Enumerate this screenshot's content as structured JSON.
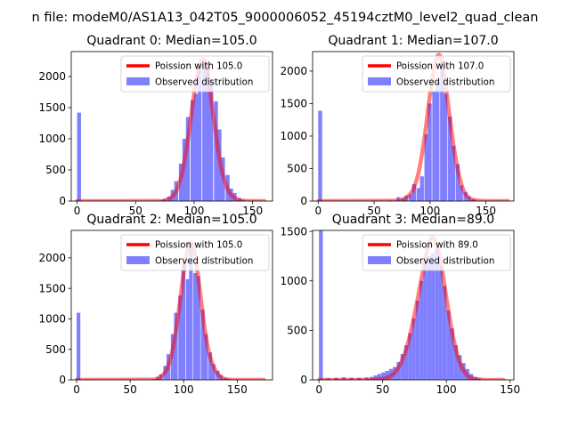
{
  "suptitle": "n file: modeM0/AS1A13_042T05_9000006052_45194cztM0_level2_quad_clean",
  "legend_labels": [
    "Poission with {v}",
    "Observed distribution"
  ],
  "colors": {
    "hist": "#8080ff",
    "fit": "#ff0000",
    "fit_alpha": 0.5
  },
  "chart_data": [
    {
      "type": "bar",
      "title": "Quadrant 0: Median=105.0",
      "median": 105.0,
      "legend_position": "upper-right",
      "xlim": [
        -5,
        167
      ],
      "ylim": [
        0,
        2400
      ],
      "xticks": [
        0,
        50,
        100,
        150
      ],
      "yticks": [
        0,
        500,
        1000,
        1500,
        2000
      ],
      "bin_width": 3.33,
      "bins": [
        [
          0,
          1420
        ],
        [
          70,
          10
        ],
        [
          73,
          30
        ],
        [
          77,
          70
        ],
        [
          80,
          180
        ],
        [
          83,
          320
        ],
        [
          87,
          600
        ],
        [
          90,
          1000
        ],
        [
          93,
          1350
        ],
        [
          97,
          1620
        ],
        [
          100,
          1720
        ],
        [
          103,
          2100
        ],
        [
          107,
          2230
        ],
        [
          110,
          2250
        ],
        [
          113,
          1950
        ],
        [
          117,
          1600
        ],
        [
          120,
          1150
        ],
        [
          123,
          700
        ],
        [
          127,
          420
        ],
        [
          130,
          200
        ],
        [
          133,
          130
        ],
        [
          137,
          50
        ],
        [
          140,
          20
        ]
      ],
      "fit": [
        [
          0,
          0
        ],
        [
          70,
          2
        ],
        [
          75,
          12
        ],
        [
          80,
          55
        ],
        [
          85,
          170
        ],
        [
          90,
          470
        ],
        [
          95,
          1030
        ],
        [
          100,
          1720
        ],
        [
          103,
          2040
        ],
        [
          105,
          2200
        ],
        [
          107,
          2270
        ],
        [
          109,
          2240
        ],
        [
          111,
          2110
        ],
        [
          113,
          1880
        ],
        [
          115,
          1560
        ],
        [
          118,
          1170
        ],
        [
          121,
          750
        ],
        [
          125,
          390
        ],
        [
          130,
          140
        ],
        [
          135,
          45
        ],
        [
          140,
          10
        ],
        [
          150,
          0
        ],
        [
          160,
          0
        ]
      ]
    },
    {
      "type": "bar",
      "title": "Quadrant 1: Median=107.0",
      "median": 107.0,
      "legend_position": "upper-right",
      "xlim": [
        -5,
        175
      ],
      "ylim": [
        0,
        2300
      ],
      "xticks": [
        0,
        50,
        100,
        150
      ],
      "yticks": [
        0,
        500,
        1000,
        1500,
        2000
      ],
      "bin_width": 3.5,
      "bins": [
        [
          0,
          1390
        ],
        [
          63,
          10
        ],
        [
          70,
          60
        ],
        [
          74,
          40
        ],
        [
          77,
          80
        ],
        [
          81,
          100
        ],
        [
          84,
          260
        ],
        [
          88,
          200
        ],
        [
          91,
          380
        ],
        [
          95,
          1030
        ],
        [
          98,
          1500
        ],
        [
          102,
          1700
        ],
        [
          105,
          1850
        ],
        [
          109,
          2150
        ],
        [
          112,
          1650
        ],
        [
          116,
          1300
        ],
        [
          119,
          850
        ],
        [
          123,
          570
        ],
        [
          126,
          240
        ],
        [
          130,
          140
        ],
        [
          133,
          70
        ],
        [
          137,
          30
        ]
      ],
      "fit": [
        [
          0,
          0
        ],
        [
          70,
          5
        ],
        [
          75,
          20
        ],
        [
          80,
          70
        ],
        [
          85,
          180
        ],
        [
          90,
          460
        ],
        [
          95,
          970
        ],
        [
          100,
          1640
        ],
        [
          103,
          1980
        ],
        [
          106,
          2200
        ],
        [
          108,
          2250
        ],
        [
          110,
          2190
        ],
        [
          112,
          1990
        ],
        [
          115,
          1640
        ],
        [
          118,
          1240
        ],
        [
          121,
          860
        ],
        [
          125,
          470
        ],
        [
          130,
          160
        ],
        [
          135,
          50
        ],
        [
          140,
          12
        ],
        [
          150,
          0
        ],
        [
          170,
          0
        ]
      ]
    },
    {
      "type": "bar",
      "title": "Quadrant 2: Median=105.0",
      "median": 105.0,
      "legend_position": "upper-right",
      "xlim": [
        -5,
        183
      ],
      "ylim": [
        0,
        2450
      ],
      "xticks": [
        0,
        50,
        100,
        150
      ],
      "yticks": [
        0,
        500,
        1000,
        1500,
        2000
      ],
      "bin_width": 3.5,
      "bins": [
        [
          0,
          1100
        ],
        [
          70,
          10
        ],
        [
          74,
          40
        ],
        [
          77,
          90
        ],
        [
          81,
          230
        ],
        [
          84,
          420
        ],
        [
          88,
          750
        ],
        [
          91,
          1100
        ],
        [
          95,
          1380
        ],
        [
          98,
          1900
        ],
        [
          102,
          1650
        ],
        [
          105,
          2250
        ],
        [
          109,
          1750
        ],
        [
          112,
          1700
        ],
        [
          116,
          1150
        ],
        [
          119,
          750
        ],
        [
          123,
          450
        ],
        [
          126,
          260
        ],
        [
          130,
          150
        ],
        [
          133,
          80
        ],
        [
          137,
          30
        ],
        [
          140,
          15
        ]
      ],
      "fit": [
        [
          0,
          0
        ],
        [
          70,
          5
        ],
        [
          75,
          20
        ],
        [
          80,
          70
        ],
        [
          85,
          200
        ],
        [
          90,
          520
        ],
        [
          95,
          1080
        ],
        [
          100,
          1760
        ],
        [
          103,
          2080
        ],
        [
          105,
          2230
        ],
        [
          107,
          2250
        ],
        [
          109,
          2180
        ],
        [
          111,
          1990
        ],
        [
          114,
          1620
        ],
        [
          117,
          1200
        ],
        [
          120,
          800
        ],
        [
          124,
          420
        ],
        [
          130,
          140
        ],
        [
          135,
          45
        ],
        [
          140,
          10
        ],
        [
          150,
          0
        ],
        [
          175,
          0
        ]
      ]
    },
    {
      "type": "bar",
      "title": "Quadrant 3: Median=89.0",
      "median": 89.0,
      "legend_position": "upper-right",
      "xlim": [
        -5,
        153
      ],
      "ylim": [
        0,
        1510
      ],
      "xticks": [
        0,
        50,
        100,
        150
      ],
      "yticks": [
        0,
        500,
        1000,
        1500
      ],
      "bin_width": 3.0,
      "bins": [
        [
          0,
          1510
        ],
        [
          6,
          15
        ],
        [
          12,
          20
        ],
        [
          18,
          25
        ],
        [
          24,
          20
        ],
        [
          30,
          20
        ],
        [
          36,
          25
        ],
        [
          40,
          30
        ],
        [
          43,
          45
        ],
        [
          46,
          60
        ],
        [
          49,
          75
        ],
        [
          52,
          90
        ],
        [
          55,
          110
        ],
        [
          58,
          130
        ],
        [
          61,
          180
        ],
        [
          64,
          260
        ],
        [
          67,
          350
        ],
        [
          70,
          470
        ],
        [
          73,
          620
        ],
        [
          76,
          800
        ],
        [
          79,
          1000
        ],
        [
          82,
          1200
        ],
        [
          85,
          1250
        ],
        [
          88,
          1280
        ],
        [
          91,
          1320
        ],
        [
          94,
          1150
        ],
        [
          97,
          950
        ],
        [
          100,
          700
        ],
        [
          103,
          520
        ],
        [
          106,
          350
        ],
        [
          109,
          250
        ],
        [
          112,
          170
        ],
        [
          115,
          110
        ],
        [
          118,
          60
        ],
        [
          121,
          30
        ],
        [
          124,
          15
        ]
      ],
      "fit": [
        [
          0,
          0
        ],
        [
          40,
          1
        ],
        [
          50,
          10
        ],
        [
          55,
          30
        ],
        [
          60,
          80
        ],
        [
          65,
          190
        ],
        [
          70,
          380
        ],
        [
          75,
          660
        ],
        [
          80,
          990
        ],
        [
          84,
          1260
        ],
        [
          87,
          1400
        ],
        [
          89,
          1440
        ],
        [
          91,
          1410
        ],
        [
          94,
          1290
        ],
        [
          97,
          1080
        ],
        [
          100,
          830
        ],
        [
          104,
          520
        ],
        [
          108,
          280
        ],
        [
          112,
          130
        ],
        [
          116,
          50
        ],
        [
          120,
          16
        ],
        [
          130,
          0
        ],
        [
          145,
          0
        ]
      ]
    }
  ]
}
